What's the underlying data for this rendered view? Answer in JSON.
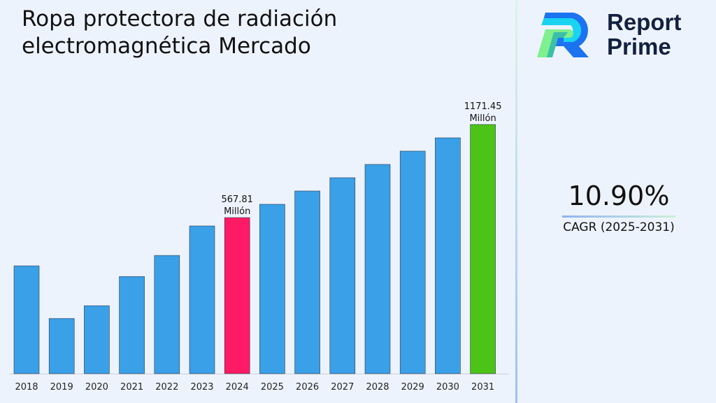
{
  "title": "Ropa protectora de radiación electromagnética Mercado",
  "logo": {
    "text_line1": "Report",
    "text_line2": "Prime"
  },
  "cagr": {
    "value": "10.90%",
    "label": "CAGR (2025-2031)"
  },
  "colors": {
    "bar": "#3aa0e8",
    "highlight_2024": "#ff1a66",
    "highlight_2031": "#4cc417"
  },
  "chart_data": {
    "type": "bar",
    "categories": [
      "2018",
      "2019",
      "2020",
      "2021",
      "2022",
      "2023",
      "2024",
      "2025",
      "2026",
      "2027",
      "2028",
      "2029",
      "2030",
      "2031"
    ],
    "values": [
      390,
      259,
      286,
      359,
      423,
      532,
      567.81,
      629.7,
      698.3,
      774.4,
      858.8,
      952.4,
      1056.2,
      1171.45
    ],
    "data_labels": [
      {
        "index": 6,
        "line1": "567.81",
        "line2": "Millón"
      },
      {
        "index": 13,
        "line1": "1171.45",
        "line2": "Millón"
      }
    ],
    "grid": false,
    "title": "",
    "xlabel": "",
    "ylabel": ""
  }
}
